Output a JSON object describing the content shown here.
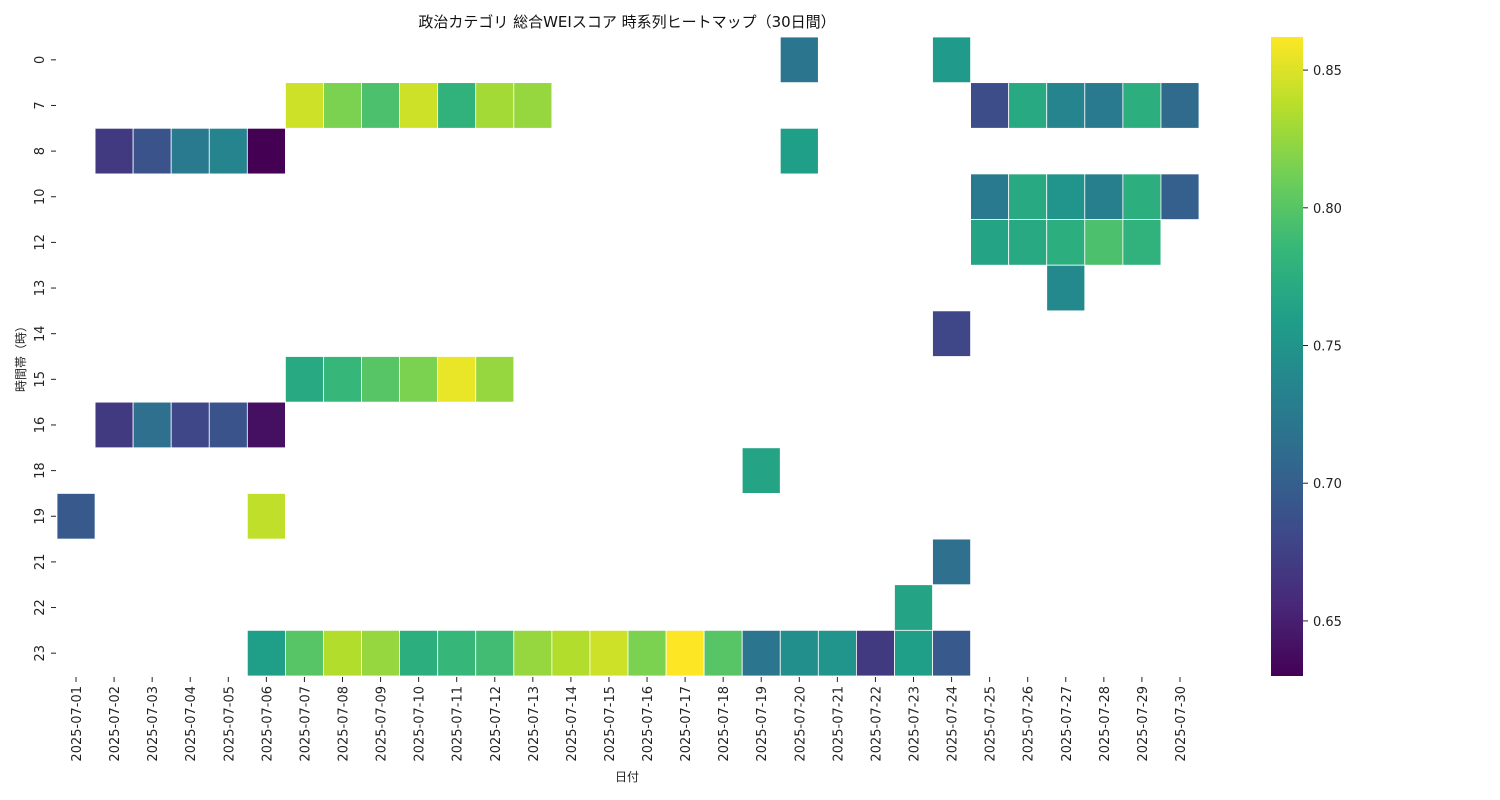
{
  "chart_data": {
    "type": "heatmap",
    "title": "政治カテゴリ 総合WEIスコア 時系列ヒートマップ（30日間）",
    "xlabel": "日付",
    "ylabel": "時間帯（時）",
    "x": [
      "2025-07-01",
      "2025-07-02",
      "2025-07-03",
      "2025-07-04",
      "2025-07-05",
      "2025-07-06",
      "2025-07-07",
      "2025-07-08",
      "2025-07-09",
      "2025-07-10",
      "2025-07-11",
      "2025-07-12",
      "2025-07-13",
      "2025-07-14",
      "2025-07-15",
      "2025-07-16",
      "2025-07-17",
      "2025-07-18",
      "2025-07-19",
      "2025-07-20",
      "2025-07-21",
      "2025-07-22",
      "2025-07-23",
      "2025-07-24",
      "2025-07-25",
      "2025-07-26",
      "2025-07-27",
      "2025-07-28",
      "2025-07-29",
      "2025-07-30"
    ],
    "y": [
      "0",
      "7",
      "8",
      "10",
      "12",
      "13",
      "14",
      "15",
      "16",
      "18",
      "19",
      "21",
      "22",
      "23"
    ],
    "colormap": "viridis",
    "vmin": 0.63,
    "vmax": 0.862,
    "colorbar_ticks": [
      "0.65",
      "0.70",
      "0.75",
      "0.80",
      "0.85"
    ],
    "colorbar_tick_values": [
      0.65,
      0.7,
      0.75,
      0.8,
      0.85
    ],
    "cells": [
      {
        "x": "2025-07-20",
        "y": "0",
        "value": 0.72
      },
      {
        "x": "2025-07-24",
        "y": "0",
        "value": 0.755
      },
      {
        "x": "2025-07-07",
        "y": "7",
        "value": 0.845
      },
      {
        "x": "2025-07-08",
        "y": "7",
        "value": 0.815
      },
      {
        "x": "2025-07-09",
        "y": "7",
        "value": 0.795
      },
      {
        "x": "2025-07-10",
        "y": "7",
        "value": 0.845
      },
      {
        "x": "2025-07-11",
        "y": "7",
        "value": 0.78
      },
      {
        "x": "2025-07-12",
        "y": "7",
        "value": 0.83
      },
      {
        "x": "2025-07-13",
        "y": "7",
        "value": 0.825
      },
      {
        "x": "2025-07-25",
        "y": "7",
        "value": 0.685
      },
      {
        "x": "2025-07-26",
        "y": "7",
        "value": 0.77
      },
      {
        "x": "2025-07-27",
        "y": "7",
        "value": 0.735
      },
      {
        "x": "2025-07-28",
        "y": "7",
        "value": 0.725
      },
      {
        "x": "2025-07-29",
        "y": "7",
        "value": 0.775
      },
      {
        "x": "2025-07-30",
        "y": "7",
        "value": 0.71
      },
      {
        "x": "2025-07-02",
        "y": "8",
        "value": 0.67
      },
      {
        "x": "2025-07-03",
        "y": "8",
        "value": 0.69
      },
      {
        "x": "2025-07-04",
        "y": "8",
        "value": 0.725
      },
      {
        "x": "2025-07-05",
        "y": "8",
        "value": 0.735
      },
      {
        "x": "2025-07-06",
        "y": "8",
        "value": 0.63
      },
      {
        "x": "2025-07-20",
        "y": "8",
        "value": 0.76
      },
      {
        "x": "2025-07-25",
        "y": "10",
        "value": 0.725
      },
      {
        "x": "2025-07-26",
        "y": "10",
        "value": 0.77
      },
      {
        "x": "2025-07-27",
        "y": "10",
        "value": 0.75
      },
      {
        "x": "2025-07-28",
        "y": "10",
        "value": 0.73
      },
      {
        "x": "2025-07-29",
        "y": "10",
        "value": 0.775
      },
      {
        "x": "2025-07-30",
        "y": "10",
        "value": 0.7
      },
      {
        "x": "2025-07-25",
        "y": "12",
        "value": 0.765
      },
      {
        "x": "2025-07-26",
        "y": "12",
        "value": 0.77
      },
      {
        "x": "2025-07-27",
        "y": "12",
        "value": 0.775
      },
      {
        "x": "2025-07-28",
        "y": "12",
        "value": 0.795
      },
      {
        "x": "2025-07-29",
        "y": "12",
        "value": 0.78
      },
      {
        "x": "2025-07-27",
        "y": "13",
        "value": 0.74
      },
      {
        "x": "2025-07-24",
        "y": "14",
        "value": 0.68
      },
      {
        "x": "2025-07-07",
        "y": "15",
        "value": 0.77
      },
      {
        "x": "2025-07-08",
        "y": "15",
        "value": 0.785
      },
      {
        "x": "2025-07-09",
        "y": "15",
        "value": 0.8
      },
      {
        "x": "2025-07-10",
        "y": "15",
        "value": 0.815
      },
      {
        "x": "2025-07-11",
        "y": "15",
        "value": 0.855
      },
      {
        "x": "2025-07-12",
        "y": "15",
        "value": 0.825
      },
      {
        "x": "2025-07-02",
        "y": "16",
        "value": 0.67
      },
      {
        "x": "2025-07-03",
        "y": "16",
        "value": 0.715
      },
      {
        "x": "2025-07-04",
        "y": "16",
        "value": 0.68
      },
      {
        "x": "2025-07-05",
        "y": "16",
        "value": 0.69
      },
      {
        "x": "2025-07-06",
        "y": "16",
        "value": 0.64
      },
      {
        "x": "2025-07-19",
        "y": "18",
        "value": 0.765
      },
      {
        "x": "2025-07-01",
        "y": "19",
        "value": 0.695
      },
      {
        "x": "2025-07-06",
        "y": "19",
        "value": 0.84
      },
      {
        "x": "2025-07-24",
        "y": "21",
        "value": 0.715
      },
      {
        "x": "2025-07-23",
        "y": "22",
        "value": 0.765
      },
      {
        "x": "2025-07-06",
        "y": "23",
        "value": 0.76
      },
      {
        "x": "2025-07-07",
        "y": "23",
        "value": 0.8
      },
      {
        "x": "2025-07-08",
        "y": "23",
        "value": 0.835
      },
      {
        "x": "2025-07-09",
        "y": "23",
        "value": 0.825
      },
      {
        "x": "2025-07-10",
        "y": "23",
        "value": 0.775
      },
      {
        "x": "2025-07-11",
        "y": "23",
        "value": 0.785
      },
      {
        "x": "2025-07-12",
        "y": "23",
        "value": 0.79
      },
      {
        "x": "2025-07-13",
        "y": "23",
        "value": 0.825
      },
      {
        "x": "2025-07-14",
        "y": "23",
        "value": 0.835
      },
      {
        "x": "2025-07-15",
        "y": "23",
        "value": 0.845
      },
      {
        "x": "2025-07-16",
        "y": "23",
        "value": 0.815
      },
      {
        "x": "2025-07-17",
        "y": "23",
        "value": 0.862
      },
      {
        "x": "2025-07-18",
        "y": "23",
        "value": 0.8
      },
      {
        "x": "2025-07-19",
        "y": "23",
        "value": 0.72
      },
      {
        "x": "2025-07-20",
        "y": "23",
        "value": 0.745
      },
      {
        "x": "2025-07-21",
        "y": "23",
        "value": 0.75
      },
      {
        "x": "2025-07-22",
        "y": "23",
        "value": 0.67
      },
      {
        "x": "2025-07-23",
        "y": "23",
        "value": 0.76
      },
      {
        "x": "2025-07-24",
        "y": "23",
        "value": 0.695
      }
    ]
  }
}
